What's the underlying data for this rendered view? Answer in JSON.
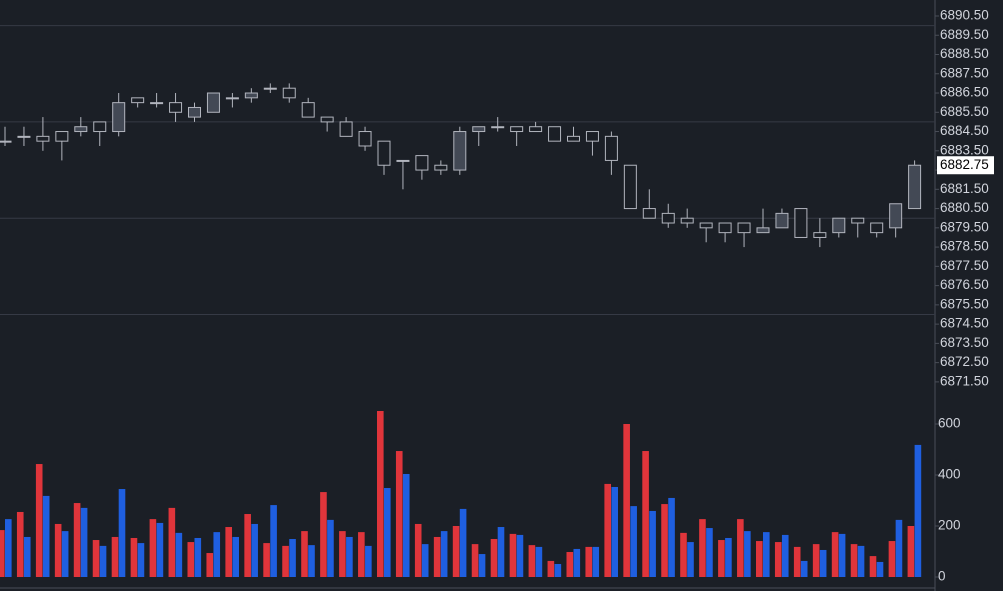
{
  "chart_data": {
    "type": "candlestick",
    "open": [
      6884.0,
      6884.25,
      6884.25,
      6884.5,
      6884.5,
      6885.0,
      6884.5,
      6886.25,
      6886.0,
      6886.0,
      6885.25,
      6885.5,
      6886.25,
      6886.25,
      6886.75,
      6886.75,
      6886.0,
      6885.25,
      6885.0,
      6884.5,
      6884.0,
      6883.0,
      6883.25,
      6882.75,
      6882.5,
      6884.5,
      6884.75,
      6884.75,
      6884.75,
      6884.75,
      6884.25,
      6884.5,
      6884.25,
      6882.75,
      6880.5,
      6880.25,
      6880.0,
      6879.75,
      6879.75,
      6879.75,
      6879.25,
      6879.5,
      6880.5,
      6879.25,
      6879.25,
      6880.0,
      6879.75,
      6879.5,
      6880.5
    ],
    "high": [
      6884.75,
      6884.75,
      6885.25,
      6884.5,
      6885.25,
      6885.0,
      6886.5,
      6886.25,
      6886.5,
      6886.5,
      6886.0,
      6886.5,
      6886.5,
      6886.75,
      6887.0,
      6887.0,
      6886.25,
      6885.25,
      6885.25,
      6884.75,
      6884.0,
      6883.0,
      6883.25,
      6883.0,
      6884.75,
      6884.75,
      6885.25,
      6884.75,
      6885.0,
      6884.75,
      6884.75,
      6884.5,
      6884.5,
      6882.75,
      6881.5,
      6880.75,
      6880.5,
      6879.75,
      6879.75,
      6879.75,
      6880.5,
      6880.5,
      6880.5,
      6880.0,
      6880.0,
      6880.0,
      6879.75,
      6880.75,
      6883.0
    ],
    "low": [
      6883.75,
      6883.75,
      6883.5,
      6883.0,
      6884.25,
      6883.75,
      6884.25,
      6885.75,
      6885.75,
      6885.0,
      6885.0,
      6885.5,
      6885.75,
      6886.0,
      6886.5,
      6886.0,
      6885.25,
      6884.5,
      6884.25,
      6883.5,
      6882.25,
      6881.5,
      6882.0,
      6882.25,
      6882.25,
      6883.75,
      6884.5,
      6883.75,
      6884.5,
      6884.0,
      6884.0,
      6883.25,
      6882.25,
      6880.5,
      6880.0,
      6879.5,
      6879.5,
      6878.75,
      6878.75,
      6878.5,
      6879.25,
      6879.5,
      6879.0,
      6878.5,
      6879.0,
      6879.0,
      6879.0,
      6879.0,
      6880.5
    ],
    "close": [
      6884.0,
      6884.25,
      6884.0,
      6884.0,
      6884.75,
      6884.5,
      6886.0,
      6886.0,
      6886.0,
      6885.5,
      6885.75,
      6886.5,
      6886.25,
      6886.5,
      6886.75,
      6886.25,
      6885.25,
      6885.0,
      6884.25,
      6883.75,
      6882.75,
      6883.0,
      6882.5,
      6882.5,
      6884.5,
      6884.75,
      6884.75,
      6884.5,
      6884.5,
      6884.0,
      6884.0,
      6884.0,
      6883.0,
      6880.5,
      6880.0,
      6879.75,
      6879.75,
      6879.5,
      6879.25,
      6879.25,
      6879.5,
      6880.25,
      6879.0,
      6879.0,
      6880.0,
      6879.75,
      6879.25,
      6880.75,
      6882.75
    ],
    "up_color": "#434955",
    "down_color": "#1b1f26",
    "wick_color": "#b2b5be",
    "ylim": [
      6870.56,
      6891.33
    ],
    "yticks": [
      {
        "value": 6871.5,
        "label": "6871.50"
      },
      {
        "value": 6872.5,
        "label": "6872.50"
      },
      {
        "value": 6873.5,
        "label": "6873.50"
      },
      {
        "value": 6874.5,
        "label": "6874.50"
      },
      {
        "value": 6875.5,
        "label": "6875.50"
      },
      {
        "value": 6876.5,
        "label": "6876.50"
      },
      {
        "value": 6877.5,
        "label": "6877.50"
      },
      {
        "value": 6878.5,
        "label": "6878.50"
      },
      {
        "value": 6879.5,
        "label": "6879.50"
      },
      {
        "value": 6880.5,
        "label": "6880.50"
      },
      {
        "value": 6881.5,
        "label": "6881.50"
      },
      {
        "value": 6882.5,
        "label": "6882.50"
      },
      {
        "value": 6883.5,
        "label": "6883.50"
      },
      {
        "value": 6884.5,
        "label": "6884.50"
      },
      {
        "value": 6885.5,
        "label": "6885.50"
      },
      {
        "value": 6886.5,
        "label": "6886.50"
      },
      {
        "value": 6887.5,
        "label": "6887.50"
      },
      {
        "value": 6888.5,
        "label": "6888.50"
      },
      {
        "value": 6889.5,
        "label": "6889.50"
      },
      {
        "value": 6890.5,
        "label": "6890.50"
      }
    ],
    "ygrid": [
      6890,
      6885,
      6880,
      6875
    ],
    "grid": true,
    "last_price": 6882.75,
    "volume": {
      "ylim": [
        0,
        700
      ],
      "yticks": [
        0,
        200,
        400,
        600
      ],
      "series": [
        {
          "color": "#e0353b",
          "values": [
            184,
            255,
            443,
            208,
            290,
            145,
            157,
            153,
            227,
            271,
            137,
            94,
            196,
            247,
            133,
            122,
            180,
            333,
            180,
            176,
            651,
            494,
            208,
            157,
            200,
            129,
            149,
            169,
            125,
            63,
            98,
            118,
            365,
            600,
            494,
            286,
            173,
            227,
            145,
            227,
            141,
            137,
            118,
            129,
            176,
            129,
            82,
            141,
            200
          ]
        },
        {
          "color": "#1f5fe0",
          "values": [
            227,
            157,
            318,
            180,
            271,
            122,
            345,
            133,
            212,
            173,
            153,
            176,
            157,
            208,
            282,
            149,
            125,
            224,
            157,
            122,
            349,
            404,
            129,
            180,
            267,
            90,
            196,
            165,
            118,
            51,
            110,
            118,
            353,
            278,
            259,
            310,
            137,
            192,
            153,
            180,
            176,
            165,
            63,
            106,
            169,
            122,
            59,
            224,
            518
          ]
        }
      ]
    }
  }
}
